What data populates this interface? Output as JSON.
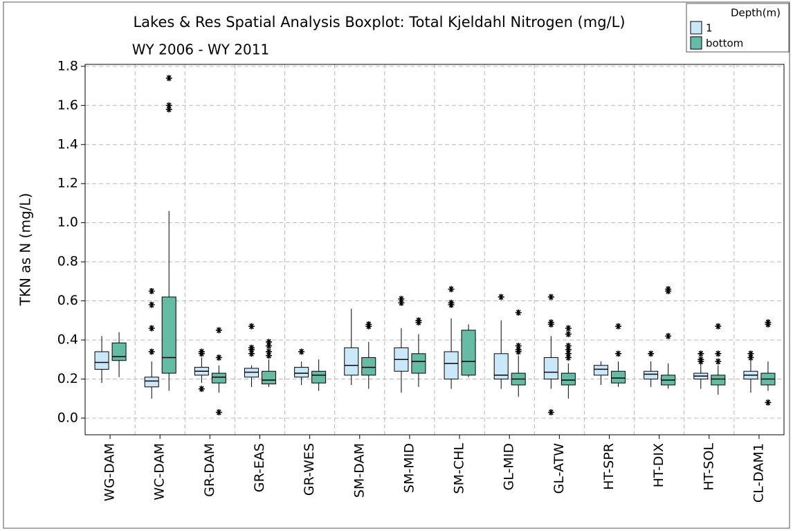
{
  "chart_data": {
    "type": "boxplot",
    "title": "Lakes & Res Spatial Analysis Boxplot: Total Kjeldahl Nitrogen (mg/L)",
    "subtitle": "WY 2006 - WY 2011",
    "y_label": "TKN as N (mg/L)",
    "legend_title": "Depth(m)",
    "legend_position": "upper right",
    "grid": true,
    "ylim": [
      -0.085,
      1.81
    ],
    "yticks": [
      {
        "value": 0,
        "label": "0.0"
      },
      0.2,
      0.4,
      0.6,
      0.8,
      {
        "value": 1,
        "label": "1.0"
      },
      1.2,
      1.4,
      1.6,
      1.8
    ],
    "categories": [
      "WG-DAM",
      "WC-DAM",
      "GR-DAM",
      "GR-EAS",
      "GR-WES",
      "SM-DAM",
      "SM-MID",
      "SM-CHL",
      "GL-MID",
      "GL-ATW",
      "HT-SPR",
      "HT-DIX",
      "HT-SOL",
      "CL-DAM1"
    ],
    "series": [
      {
        "name": "1",
        "color": "#c9e9fb",
        "values": [
          {
            "low": 0.18,
            "q1": 0.25,
            "median": 0.285,
            "q3": 0.34,
            "high": 0.42,
            "outliers": []
          },
          {
            "low": 0.1,
            "q1": 0.16,
            "median": 0.19,
            "q3": 0.21,
            "high": 0.29,
            "outliers": [
              0.34,
              0.46,
              0.58,
              0.65
            ]
          },
          {
            "low": 0.18,
            "q1": 0.22,
            "median": 0.24,
            "q3": 0.26,
            "high": 0.31,
            "outliers": [
              0.15,
              0.33,
              0.34
            ]
          },
          {
            "low": 0.16,
            "q1": 0.21,
            "median": 0.235,
            "q3": 0.255,
            "high": 0.27,
            "outliers": [
              0.33,
              0.35,
              0.36,
              0.47
            ]
          },
          {
            "low": 0.17,
            "q1": 0.21,
            "median": 0.23,
            "q3": 0.26,
            "high": 0.29,
            "outliers": [
              0.34
            ]
          },
          {
            "low": 0.17,
            "q1": 0.22,
            "median": 0.27,
            "q3": 0.36,
            "high": 0.56,
            "outliers": []
          },
          {
            "low": 0.13,
            "q1": 0.24,
            "median": 0.3,
            "q3": 0.36,
            "high": 0.46,
            "outliers": [
              0.59,
              0.61
            ]
          },
          {
            "low": 0.15,
            "q1": 0.2,
            "median": 0.28,
            "q3": 0.34,
            "high": 0.51,
            "outliers": [
              0.58,
              0.59,
              0.66
            ]
          },
          {
            "low": 0.15,
            "q1": 0.2,
            "median": 0.22,
            "q3": 0.33,
            "high": 0.5,
            "outliers": [
              0.62
            ]
          },
          {
            "low": 0.15,
            "q1": 0.2,
            "median": 0.235,
            "q3": 0.31,
            "high": 0.42,
            "outliers": [
              0.03,
              0.48,
              0.49,
              0.62
            ]
          },
          {
            "low": 0.17,
            "q1": 0.22,
            "median": 0.25,
            "q3": 0.27,
            "high": 0.29,
            "outliers": []
          },
          {
            "low": 0.16,
            "q1": 0.2,
            "median": 0.225,
            "q3": 0.24,
            "high": 0.29,
            "outliers": [
              0.33
            ]
          },
          {
            "low": 0.15,
            "q1": 0.2,
            "median": 0.215,
            "q3": 0.23,
            "high": 0.28,
            "outliers": [
              0.29,
              0.3,
              0.33
            ]
          },
          {
            "low": 0.13,
            "q1": 0.2,
            "median": 0.22,
            "q3": 0.24,
            "high": 0.3,
            "outliers": [
              0.31,
              0.33
            ]
          }
        ]
      },
      {
        "name": "bottom",
        "color": "#63bca3",
        "values": [
          {
            "low": 0.21,
            "q1": 0.295,
            "median": 0.315,
            "q3": 0.385,
            "high": 0.44,
            "outliers": []
          },
          {
            "low": 0.14,
            "q1": 0.23,
            "median": 0.31,
            "q3": 0.62,
            "high": 1.06,
            "outliers": [
              1.58,
              1.6,
              1.74
            ]
          },
          {
            "low": 0.13,
            "q1": 0.18,
            "median": 0.21,
            "q3": 0.23,
            "high": 0.27,
            "outliers": [
              0.03,
              0.31,
              0.45
            ]
          },
          {
            "low": 0.16,
            "q1": 0.175,
            "median": 0.195,
            "q3": 0.24,
            "high": 0.3,
            "outliers": [
              0.32,
              0.34,
              0.37,
              0.39
            ]
          },
          {
            "low": 0.14,
            "q1": 0.18,
            "median": 0.22,
            "q3": 0.24,
            "high": 0.3,
            "outliers": []
          },
          {
            "low": 0.15,
            "q1": 0.22,
            "median": 0.26,
            "q3": 0.31,
            "high": 0.39,
            "outliers": [
              0.47,
              0.48
            ]
          },
          {
            "low": 0.16,
            "q1": 0.23,
            "median": 0.29,
            "q3": 0.33,
            "high": 0.43,
            "outliers": [
              0.49,
              0.5
            ]
          },
          {
            "low": 0.21,
            "q1": 0.22,
            "median": 0.29,
            "q3": 0.45,
            "high": 0.48,
            "outliers": []
          },
          {
            "low": 0.11,
            "q1": 0.17,
            "median": 0.2,
            "q3": 0.23,
            "high": 0.32,
            "outliers": [
              0.34,
              0.35,
              0.37,
              0.54
            ]
          },
          {
            "low": 0.1,
            "q1": 0.17,
            "median": 0.195,
            "q3": 0.23,
            "high": 0.28,
            "outliers": [
              0.31,
              0.33,
              0.35,
              0.37,
              0.43,
              0.46
            ]
          },
          {
            "low": 0.16,
            "q1": 0.18,
            "median": 0.205,
            "q3": 0.24,
            "high": 0.29,
            "outliers": [
              0.33,
              0.47
            ]
          },
          {
            "low": 0.15,
            "q1": 0.17,
            "median": 0.195,
            "q3": 0.22,
            "high": 0.28,
            "outliers": [
              0.42,
              0.65,
              0.66
            ]
          },
          {
            "low": 0.12,
            "q1": 0.17,
            "median": 0.2,
            "q3": 0.22,
            "high": 0.27,
            "outliers": [
              0.29,
              0.33,
              0.47
            ]
          },
          {
            "low": 0.14,
            "q1": 0.17,
            "median": 0.2,
            "q3": 0.23,
            "high": 0.29,
            "outliers": [
              0.08,
              0.48,
              0.49
            ]
          }
        ]
      }
    ]
  }
}
